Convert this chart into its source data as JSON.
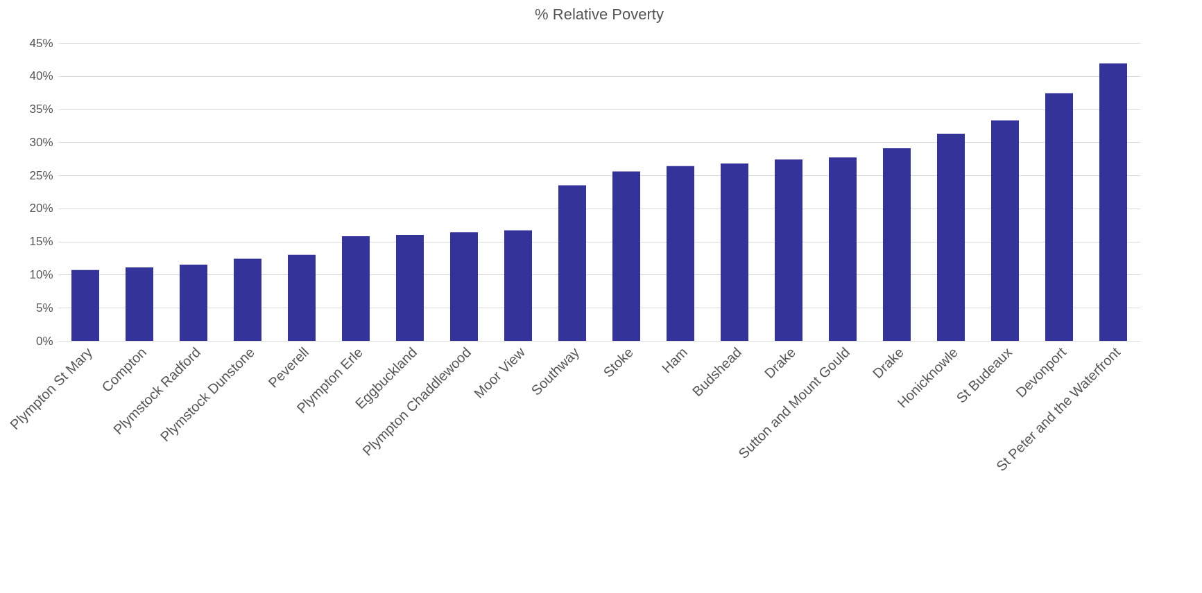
{
  "chart_data": {
    "type": "bar",
    "title": "% Relative Poverty",
    "categories": [
      "Plympton St Mary",
      "Compton",
      "Plymstock Radford",
      "Plymstock Dunstone",
      "Peverell",
      "Plympton Erle",
      "Eggbuckland",
      "Plympton Chaddlewood",
      "Moor View",
      "Southway",
      "Stoke",
      "Ham",
      "Budshead",
      "Drake",
      "Sutton and Mount Gould",
      "Drake",
      "Honicknowle",
      "St Budeaux",
      "Devonport",
      "St Peter and the Waterfront"
    ],
    "values": [
      10.7,
      11.1,
      11.5,
      12.4,
      13.0,
      15.8,
      16.0,
      16.4,
      16.7,
      23.5,
      25.6,
      26.4,
      26.8,
      27.4,
      27.7,
      29.1,
      31.3,
      33.3,
      37.4,
      41.9
    ],
    "color": "#333399",
    "ylim": [
      0,
      45
    ],
    "yticks": [
      {
        "value": 0,
        "label": "0%"
      },
      {
        "value": 5,
        "label": "5%"
      },
      {
        "value": 10,
        "label": "10%"
      },
      {
        "value": 15,
        "label": "15%"
      },
      {
        "value": 20,
        "label": "20%"
      },
      {
        "value": 25,
        "label": "25%"
      },
      {
        "value": 30,
        "label": "30%"
      },
      {
        "value": 35,
        "label": "35%"
      },
      {
        "value": 40,
        "label": "40%"
      },
      {
        "value": 45,
        "label": "45%"
      }
    ],
    "grid": "y"
  }
}
